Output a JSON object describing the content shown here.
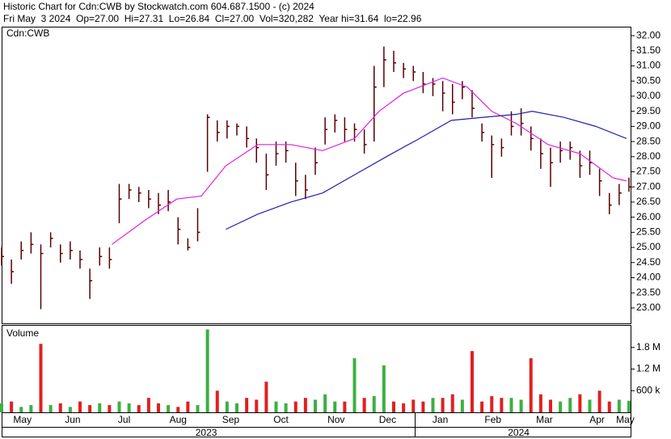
{
  "chart_data": {
    "type": "ohlc",
    "title": "Historic Chart for Cdn:CWB by Stockwatch.com 604.687.1500 - (c) 2024",
    "subtitle": "Fri May  3 2024  Op=27.00  Hi=27.31  Lo=26.84  Cl=27.00  Vol=320,282  Year hi=31.64  lo=22.96",
    "symbol_label": "Cdn:CWB",
    "volume_label": "Volume",
    "bar_color": "#5a0000",
    "up_color": "#3cb043",
    "down_color": "#e02020",
    "x": [
      0,
      4,
      8,
      12,
      16,
      20,
      24,
      28,
      32,
      36,
      40,
      44,
      48,
      52,
      56,
      60,
      64,
      68,
      72,
      76,
      80,
      84,
      88,
      92,
      96,
      100,
      104,
      108,
      112,
      116,
      120,
      124,
      128,
      132,
      136,
      140,
      144,
      148,
      152,
      156,
      160,
      164,
      168,
      172,
      176,
      180,
      184,
      188,
      192,
      196,
      200,
      204,
      208,
      212,
      216,
      220,
      224,
      228,
      232,
      236,
      240,
      244,
      248,
      252,
      256
    ],
    "high": [
      25.0,
      24.6,
      25.2,
      25.5,
      25.1,
      25.5,
      25.1,
      25.2,
      24.9,
      24.3,
      25.0,
      25.0,
      27.1,
      27.1,
      27.0,
      26.9,
      26.8,
      26.9,
      26.0,
      25.3,
      26.3,
      29.4,
      29.2,
      29.2,
      29.1,
      29.0,
      28.6,
      28.1,
      28.5,
      28.5,
      27.8,
      27.4,
      28.3,
      29.3,
      29.4,
      29.3,
      29.1,
      28.9,
      31.0,
      31.64,
      31.5,
      31.1,
      31.0,
      30.8,
      30.6,
      30.5,
      30.4,
      30.5,
      30.2,
      29.1,
      28.7,
      28.6,
      29.5,
      29.6,
      29.0,
      28.6,
      28.3,
      28.5,
      28.5,
      28.2,
      28.2,
      27.6,
      26.8,
      27.1,
      27.31
    ],
    "low": [
      24.4,
      23.8,
      24.6,
      24.8,
      22.96,
      25.0,
      24.5,
      24.6,
      24.3,
      23.3,
      24.4,
      24.3,
      25.8,
      26.6,
      26.5,
      26.3,
      26.1,
      26.2,
      25.1,
      24.9,
      25.2,
      27.5,
      28.5,
      28.6,
      28.7,
      28.3,
      27.8,
      26.9,
      27.7,
      27.8,
      26.7,
      26.6,
      27.4,
      28.4,
      28.8,
      28.5,
      28.5,
      28.1,
      28.5,
      30.3,
      30.8,
      30.6,
      30.5,
      30.1,
      30.0,
      29.5,
      29.4,
      29.9,
      29.3,
      28.5,
      27.3,
      28.0,
      28.7,
      28.7,
      28.2,
      27.6,
      27.0,
      27.8,
      27.9,
      27.3,
      27.4,
      26.7,
      26.1,
      26.4,
      26.84
    ],
    "close": [
      24.7,
      24.2,
      24.9,
      25.1,
      24.8,
      25.3,
      24.8,
      24.9,
      24.6,
      23.9,
      24.7,
      24.6,
      26.6,
      26.9,
      26.8,
      26.6,
      26.4,
      26.5,
      25.6,
      25.0,
      25.5,
      29.3,
      28.8,
      29.0,
      29.0,
      28.6,
      28.3,
      27.4,
      28.1,
      28.2,
      27.2,
      26.9,
      27.8,
      28.9,
      29.2,
      28.9,
      28.9,
      28.4,
      30.3,
      31.2,
      31.1,
      30.9,
      30.8,
      30.4,
      30.4,
      30.1,
      29.8,
      30.3,
      29.6,
      28.8,
      28.4,
      28.3,
      29.0,
      29.1,
      28.6,
      28.1,
      27.8,
      28.2,
      28.3,
      27.7,
      27.8,
      27.2,
      26.4,
      26.8,
      27.0
    ],
    "volume": [
      250000,
      300000,
      150000,
      200000,
      1900000,
      200000,
      250000,
      150000,
      300000,
      200000,
      250000,
      200000,
      300000,
      250000,
      200000,
      400000,
      250000,
      200000,
      150000,
      300000,
      200000,
      2300000,
      600000,
      300000,
      250000,
      400000,
      350000,
      850000,
      300000,
      250000,
      300000,
      400000,
      350000,
      500000,
      300000,
      300000,
      1500000,
      400000,
      450000,
      1300000,
      300000,
      250000,
      350000,
      300000,
      400000,
      400000,
      500000,
      350000,
      1700000,
      300000,
      450000,
      400000,
      400000,
      350000,
      1500000,
      500000,
      350000,
      300000,
      400000,
      500000,
      350000,
      600000,
      300000,
      350000,
      320282
    ],
    "series": [
      {
        "color": "#e020e0",
        "x": [
          45,
          58.5,
          71.5,
          81.5,
          91.5,
          104.5,
          118,
          131,
          144,
          154,
          164,
          170.5,
          180,
          190,
          200,
          210,
          223,
          236,
          249.5,
          255
        ],
        "values": [
          25.1,
          25.9,
          26.6,
          26.7,
          27.7,
          28.4,
          28.4,
          28.2,
          28.6,
          29.5,
          30.1,
          30.3,
          30.6,
          30.3,
          29.5,
          29.1,
          28.4,
          28.1,
          27.3,
          27.2
        ]
      },
      {
        "color": "#2020b0",
        "x": [
          91.5,
          104.5,
          118,
          131,
          144,
          157,
          170.5,
          183.5,
          196.5,
          210,
          216.5,
          229.5,
          242.5,
          255
        ],
        "values": [
          25.6,
          26.1,
          26.5,
          26.8,
          27.4,
          28.0,
          28.6,
          29.2,
          29.3,
          29.4,
          29.5,
          29.3,
          29.0,
          28.6
        ]
      }
    ],
    "xlim": [
      0,
      256
    ],
    "ylim": [
      22.49,
      32.27
    ],
    "yticks": [
      {
        "value": 23,
        "label": "23.00"
      },
      {
        "value": 23.5,
        "label": "23.50"
      },
      {
        "value": 24,
        "label": "24.00"
      },
      {
        "value": 24.5,
        "label": "24.50"
      },
      {
        "value": 25,
        "label": "25.00"
      },
      {
        "value": 25.5,
        "label": "25.50"
      },
      {
        "value": 26,
        "label": "26.00"
      },
      {
        "value": 26.5,
        "label": "26.50"
      },
      {
        "value": 27,
        "label": "27.00"
      },
      {
        "value": 27.5,
        "label": "27.50"
      },
      {
        "value": 28,
        "label": "28.00"
      },
      {
        "value": 28.5,
        "label": "28.50"
      },
      {
        "value": 29,
        "label": "29.00"
      },
      {
        "value": 29.5,
        "label": "29.50"
      },
      {
        "value": 30,
        "label": "30.00"
      },
      {
        "value": 30.5,
        "label": "30.50"
      },
      {
        "value": 31,
        "label": "31.00"
      },
      {
        "value": 31.5,
        "label": "31.50"
      },
      {
        "value": 32,
        "label": "32.00"
      }
    ],
    "volume_ylim": [
      0,
      2400000
    ],
    "volume_yticks": [
      {
        "value": 600000,
        "label": "600 k"
      },
      {
        "value": 1200000,
        "label": "1.2 M"
      },
      {
        "value": 1800000,
        "label": "1.8 M"
      }
    ],
    "xticks": [
      {
        "value": 8.5,
        "label": "May"
      },
      {
        "value": 29,
        "label": "Jun"
      },
      {
        "value": 50,
        "label": "Jul"
      },
      {
        "value": 72,
        "label": "Aug"
      },
      {
        "value": 93.5,
        "label": "Sep"
      },
      {
        "value": 114,
        "label": "Oct"
      },
      {
        "value": 136.5,
        "label": "Nov"
      },
      {
        "value": 157.5,
        "label": "Dec"
      },
      {
        "value": 179,
        "label": "Jan"
      },
      {
        "value": 200.5,
        "label": "Feb"
      },
      {
        "value": 221.5,
        "label": "Mar"
      },
      {
        "value": 243,
        "label": "Apr"
      },
      {
        "value": 254.5,
        "label": "May"
      }
    ],
    "year_ticks": [
      {
        "value": 83.5,
        "label": "2023"
      },
      {
        "value": 211,
        "label": "2024"
      }
    ]
  }
}
